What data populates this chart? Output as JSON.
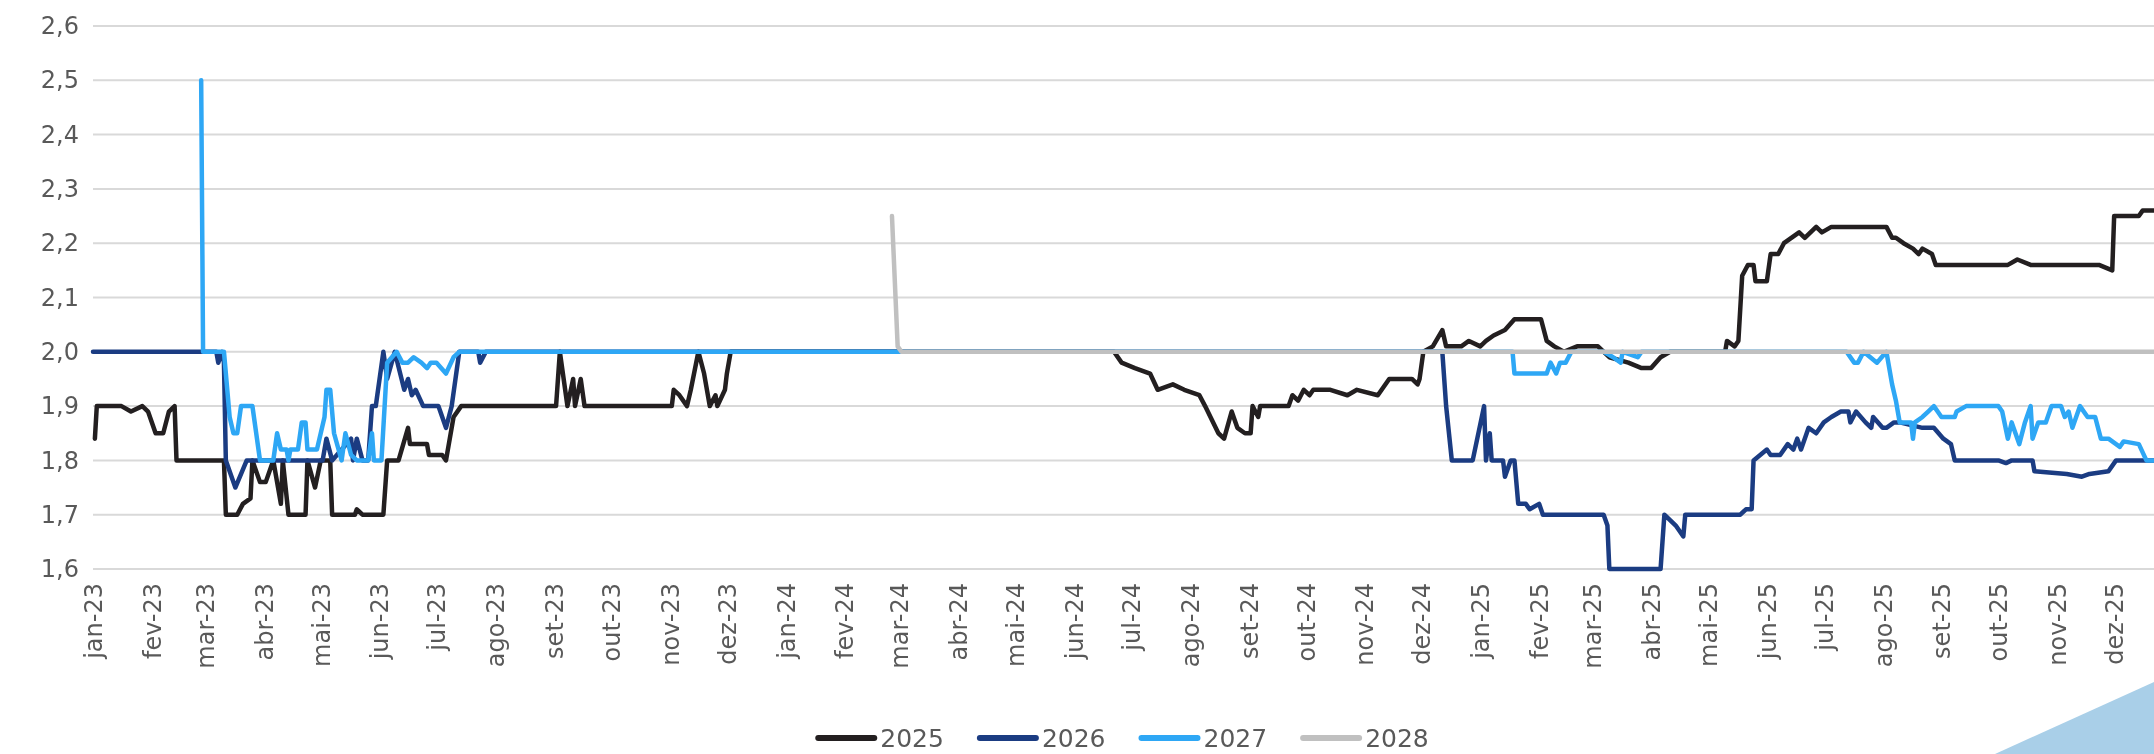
{
  "chart_data": {
    "type": "line",
    "grid": "y",
    "legend": "bottom",
    "line_style": "solid",
    "marker": "none",
    "xlim": [
      "2023-01-01",
      "2025-12-22"
    ],
    "xticks": [
      {
        "value": "2023-01-01",
        "label": "jan-23"
      },
      {
        "value": "2023-02-01",
        "label": "fev-23"
      },
      {
        "value": "2023-03-01",
        "label": "mar-23"
      },
      {
        "value": "2023-04-01",
        "label": "abr-23"
      },
      {
        "value": "2023-05-01",
        "label": "mai-23"
      },
      {
        "value": "2023-06-01",
        "label": "jun-23"
      },
      {
        "value": "2023-07-01",
        "label": "jul-23"
      },
      {
        "value": "2023-08-01",
        "label": "ago-23"
      },
      {
        "value": "2023-09-01",
        "label": "set-23"
      },
      {
        "value": "2023-10-01",
        "label": "out-23"
      },
      {
        "value": "2023-11-01",
        "label": "nov-23"
      },
      {
        "value": "2023-12-01",
        "label": "dez-23"
      },
      {
        "value": "2024-01-01",
        "label": "jan-24"
      },
      {
        "value": "2024-02-01",
        "label": "fev-24"
      },
      {
        "value": "2024-03-01",
        "label": "mar-24"
      },
      {
        "value": "2024-04-01",
        "label": "abr-24"
      },
      {
        "value": "2024-05-01",
        "label": "mai-24"
      },
      {
        "value": "2024-06-01",
        "label": "jun-24"
      },
      {
        "value": "2024-07-01",
        "label": "jul-24"
      },
      {
        "value": "2024-08-01",
        "label": "ago-24"
      },
      {
        "value": "2024-09-01",
        "label": "set-24"
      },
      {
        "value": "2024-10-01",
        "label": "out-24"
      },
      {
        "value": "2024-11-01",
        "label": "nov-24"
      },
      {
        "value": "2024-12-01",
        "label": "dez-24"
      },
      {
        "value": "2025-01-01",
        "label": "jan-25"
      },
      {
        "value": "2025-02-01",
        "label": "fev-25"
      },
      {
        "value": "2025-03-01",
        "label": "mar-25"
      },
      {
        "value": "2025-04-01",
        "label": "abr-25"
      },
      {
        "value": "2025-05-01",
        "label": "mai-25"
      },
      {
        "value": "2025-06-01",
        "label": "jun-25"
      },
      {
        "value": "2025-07-01",
        "label": "jul-25"
      },
      {
        "value": "2025-08-01",
        "label": "ago-25"
      },
      {
        "value": "2025-09-01",
        "label": "set-25"
      },
      {
        "value": "2025-10-01",
        "label": "out-25"
      },
      {
        "value": "2025-11-01",
        "label": "nov-25"
      },
      {
        "value": "2025-12-01",
        "label": "dez-25"
      }
    ],
    "ylim": [
      1.6,
      2.6
    ],
    "yticks": [
      {
        "value": 1.6,
        "label": "1,6"
      },
      {
        "value": 1.7,
        "label": "1,7"
      },
      {
        "value": 1.8,
        "label": "1,8"
      },
      {
        "value": 1.9,
        "label": "1,9"
      },
      {
        "value": 2.0,
        "label": "2,0"
      },
      {
        "value": 2.1,
        "label": "2,1"
      },
      {
        "value": 2.2,
        "label": "2,2"
      },
      {
        "value": 2.3,
        "label": "2,3"
      },
      {
        "value": 2.4,
        "label": "2,4"
      },
      {
        "value": 2.5,
        "label": "2,5"
      },
      {
        "value": 2.6,
        "label": "2,6"
      }
    ],
    "series": [
      {
        "name": "2025",
        "color": "#231f20",
        "x": [
          "2023-01-02",
          "2023-01-03",
          "2023-01-16",
          "2023-01-21",
          "2023-01-27",
          "2023-01-30",
          "2023-02-03",
          "2023-02-07",
          "2023-02-10",
          "2023-02-13",
          "2023-02-14",
          "2023-03-11",
          "2023-03-12",
          "2023-03-18",
          "2023-03-21",
          "2023-03-25",
          "2023-03-26",
          "2023-03-30",
          "2023-04-02",
          "2023-04-06",
          "2023-04-10",
          "2023-04-11",
          "2023-04-14",
          "2023-04-23",
          "2023-04-24",
          "2023-04-28",
          "2023-05-01",
          "2023-05-06",
          "2023-05-07",
          "2023-05-19",
          "2023-05-20",
          "2023-05-23",
          "2023-06-03",
          "2023-06-05",
          "2023-06-11",
          "2023-06-16",
          "2023-06-17",
          "2023-06-26",
          "2023-06-27",
          "2023-07-04",
          "2023-07-06",
          "2023-07-10",
          "2023-07-14",
          "2023-09-02",
          "2023-09-04",
          "2023-09-08",
          "2023-09-11",
          "2023-09-12",
          "2023-09-15",
          "2023-09-17",
          "2023-11-02",
          "2023-11-03",
          "2023-11-06",
          "2023-11-10",
          "2023-11-12",
          "2023-11-16",
          "2023-11-19",
          "2023-11-22",
          "2023-11-25",
          "2023-11-26",
          "2023-11-30",
          "2023-12-01",
          "2023-12-03",
          "2024-06-22",
          "2024-06-26",
          "2024-07-03",
          "2024-07-11",
          "2024-07-15",
          "2024-07-23",
          "2024-07-29",
          "2024-08-06",
          "2024-08-09",
          "2024-08-16",
          "2024-08-19",
          "2024-08-23",
          "2024-08-26",
          "2024-08-30",
          "2024-09-02",
          "2024-09-03",
          "2024-09-06",
          "2024-09-07",
          "2024-09-22",
          "2024-09-24",
          "2024-09-27",
          "2024-09-30",
          "2024-10-03",
          "2024-10-05",
          "2024-10-14",
          "2024-10-23",
          "2024-10-28",
          "2024-11-08",
          "2024-11-14",
          "2024-11-26",
          "2024-11-29",
          "2024-11-30",
          "2024-12-02",
          "2024-12-07",
          "2024-12-12",
          "2024-12-14",
          "2024-12-22",
          "2024-12-26",
          "2025-01-01",
          "2025-01-04",
          "2025-01-08",
          "2025-01-14",
          "2025-01-19",
          "2025-02-02",
          "2025-02-05",
          "2025-02-09",
          "2025-02-14",
          "2025-02-21",
          "2025-03-04",
          "2025-03-10",
          "2025-03-20",
          "2025-03-27",
          "2025-04-01",
          "2025-04-06",
          "2025-04-11",
          "2025-05-10",
          "2025-05-11",
          "2025-05-15",
          "2025-05-17",
          "2025-05-19",
          "2025-05-22",
          "2025-05-25",
          "2025-05-26",
          "2025-06-01",
          "2025-06-03",
          "2025-06-07",
          "2025-06-10",
          "2025-06-18",
          "2025-06-21",
          "2025-06-27",
          "2025-06-30",
          "2025-07-05",
          "2025-07-12",
          "2025-08-03",
          "2025-08-06",
          "2025-08-08",
          "2025-08-12",
          "2025-08-17",
          "2025-08-20",
          "2025-08-22",
          "2025-08-27",
          "2025-08-29",
          "2025-10-06",
          "2025-10-11",
          "2025-10-18",
          "2025-11-23",
          "2025-11-30",
          "2025-12-01",
          "2025-12-14",
          "2025-12-16",
          "2025-12-22"
        ],
        "values": [
          1.84,
          1.9,
          1.9,
          1.89,
          1.9,
          1.89,
          1.85,
          1.85,
          1.89,
          1.9,
          1.8,
          1.8,
          1.7,
          1.7,
          1.72,
          1.73,
          1.8,
          1.76,
          1.76,
          1.8,
          1.72,
          1.8,
          1.7,
          1.7,
          1.8,
          1.75,
          1.8,
          1.8,
          1.7,
          1.7,
          1.71,
          1.7,
          1.7,
          1.8,
          1.8,
          1.86,
          1.83,
          1.83,
          1.81,
          1.81,
          1.8,
          1.88,
          1.9,
          1.9,
          2.0,
          1.9,
          1.95,
          1.9,
          1.95,
          1.9,
          1.9,
          1.93,
          1.92,
          1.9,
          1.93,
          2.0,
          1.96,
          1.9,
          1.92,
          1.9,
          1.93,
          1.96,
          2.0,
          2.0,
          1.98,
          1.97,
          1.96,
          1.93,
          1.94,
          1.93,
          1.92,
          1.9,
          1.85,
          1.84,
          1.89,
          1.86,
          1.85,
          1.85,
          1.9,
          1.88,
          1.9,
          1.9,
          1.92,
          1.91,
          1.93,
          1.92,
          1.93,
          1.93,
          1.92,
          1.93,
          1.92,
          1.95,
          1.95,
          1.94,
          1.95,
          2.0,
          2.01,
          2.04,
          2.01,
          2.01,
          2.02,
          2.01,
          2.02,
          2.03,
          2.04,
          2.06,
          2.06,
          2.02,
          2.01,
          2.0,
          2.01,
          2.01,
          1.99,
          1.98,
          1.97,
          1.97,
          1.99,
          2.0,
          2.0,
          2.02,
          2.01,
          2.02,
          2.14,
          2.16,
          2.16,
          2.13,
          2.13,
          2.18,
          2.18,
          2.2,
          2.22,
          2.21,
          2.23,
          2.22,
          2.23,
          2.23,
          2.23,
          2.21,
          2.21,
          2.2,
          2.19,
          2.18,
          2.19,
          2.18,
          2.16,
          2.16,
          2.17,
          2.16,
          2.16,
          2.15,
          2.25,
          2.25,
          2.26,
          2.26
        ]
      },
      {
        "name": "2026",
        "color": "#1b3c82",
        "x": [
          "2023-01-01",
          "2023-03-07",
          "2023-03-08",
          "2023-03-10",
          "2023-03-11",
          "2023-03-12",
          "2023-03-17",
          "2023-03-23",
          "2023-05-02",
          "2023-05-04",
          "2023-05-07",
          "2023-05-17",
          "2023-05-18",
          "2023-05-20",
          "2023-05-23",
          "2023-05-26",
          "2023-05-28",
          "2023-05-30",
          "2023-06-03",
          "2023-06-05",
          "2023-06-09",
          "2023-06-14",
          "2023-06-16",
          "2023-06-18",
          "2023-06-20",
          "2023-06-24",
          "2023-07-02",
          "2023-07-06",
          "2023-07-09",
          "2023-07-13",
          "2023-07-23",
          "2023-07-24",
          "2023-07-27",
          "2024-12-12",
          "2024-12-14",
          "2024-12-17",
          "2024-12-28",
          "2025-01-03",
          "2025-01-04",
          "2025-01-06",
          "2025-01-07",
          "2025-01-13",
          "2025-01-14",
          "2025-01-17",
          "2025-01-19",
          "2025-01-21",
          "2025-01-25",
          "2025-01-27",
          "2025-02-01",
          "2025-02-03",
          "2025-03-07",
          "2025-03-09",
          "2025-03-10",
          "2025-04-06",
          "2025-04-08",
          "2025-04-14",
          "2025-04-18",
          "2025-04-19",
          "2025-05-18",
          "2025-05-21",
          "2025-05-24",
          "2025-05-25",
          "2025-06-01",
          "2025-06-03",
          "2025-06-08",
          "2025-06-12",
          "2025-06-15",
          "2025-06-17",
          "2025-06-19",
          "2025-06-23",
          "2025-06-27",
          "2025-07-01",
          "2025-07-05",
          "2025-07-10",
          "2025-07-14",
          "2025-07-15",
          "2025-07-18",
          "2025-07-23",
          "2025-07-26",
          "2025-07-27",
          "2025-08-01",
          "2025-08-03",
          "2025-08-07",
          "2025-08-10",
          "2025-08-22",
          "2025-08-28",
          "2025-09-02",
          "2025-09-06",
          "2025-09-08",
          "2025-10-01",
          "2025-10-05",
          "2025-10-08",
          "2025-10-19",
          "2025-10-20",
          "2025-11-06",
          "2025-11-14",
          "2025-11-18",
          "2025-11-28",
          "2025-12-02",
          "2025-12-22"
        ],
        "values": [
          2.0,
          2.0,
          1.98,
          2.0,
          1.98,
          1.8,
          1.75,
          1.8,
          1.8,
          1.84,
          1.8,
          1.84,
          1.8,
          1.84,
          1.8,
          1.8,
          1.9,
          1.9,
          2.0,
          1.95,
          2.0,
          1.93,
          1.95,
          1.92,
          1.93,
          1.9,
          1.9,
          1.86,
          1.9,
          2.0,
          2.0,
          1.98,
          2.0,
          2.0,
          1.9,
          1.8,
          1.8,
          1.9,
          1.8,
          1.85,
          1.8,
          1.8,
          1.77,
          1.8,
          1.8,
          1.72,
          1.72,
          1.71,
          1.72,
          1.7,
          1.7,
          1.68,
          1.6,
          1.6,
          1.7,
          1.68,
          1.66,
          1.7,
          1.7,
          1.71,
          1.71,
          1.8,
          1.82,
          1.81,
          1.81,
          1.83,
          1.82,
          1.84,
          1.82,
          1.86,
          1.85,
          1.87,
          1.88,
          1.89,
          1.89,
          1.87,
          1.89,
          1.87,
          1.86,
          1.88,
          1.86,
          1.86,
          1.87,
          1.87,
          1.86,
          1.86,
          1.84,
          1.83,
          1.8,
          1.8,
          1.795,
          1.8,
          1.8,
          1.78,
          1.775,
          1.77,
          1.775,
          1.78,
          1.8,
          1.8
        ]
      },
      {
        "name": "2027",
        "color": "#2ea7f5",
        "x": [
          "2023-02-27",
          "2023-02-28",
          "2023-03-11",
          "2023-03-14",
          "2023-03-16",
          "2023-03-18",
          "2023-03-20",
          "2023-03-26",
          "2023-03-28",
          "2023-03-30",
          "2023-04-06",
          "2023-04-08",
          "2023-04-10",
          "2023-04-13",
          "2023-04-14",
          "2023-04-15",
          "2023-04-19",
          "2023-04-21",
          "2023-04-23",
          "2023-04-24",
          "2023-04-29",
          "2023-05-03",
          "2023-05-04",
          "2023-05-06",
          "2023-05-08",
          "2023-05-12",
          "2023-05-14",
          "2023-05-17",
          "2023-05-20",
          "2023-05-26",
          "2023-05-28",
          "2023-05-29",
          "2023-06-02",
          "2023-06-05",
          "2023-06-10",
          "2023-06-13",
          "2023-06-16",
          "2023-06-19",
          "2023-06-23",
          "2023-06-26",
          "2023-06-28",
          "2023-07-01",
          "2023-07-06",
          "2023-07-10",
          "2023-07-13",
          "2025-01-18",
          "2025-01-19",
          "2025-02-05",
          "2025-02-07",
          "2025-02-10",
          "2025-02-12",
          "2025-02-15",
          "2025-02-18",
          "2025-03-07",
          "2025-03-12",
          "2025-03-16",
          "2025-03-17",
          "2025-03-25",
          "2025-03-27",
          "2025-07-13",
          "2025-07-17",
          "2025-07-19",
          "2025-07-22",
          "2025-07-29",
          "2025-08-03",
          "2025-08-06",
          "2025-08-08",
          "2025-08-09",
          "2025-08-10",
          "2025-08-16",
          "2025-08-17",
          "2025-08-18",
          "2025-08-22",
          "2025-08-25",
          "2025-08-28",
          "2025-08-30",
          "2025-09-01",
          "2025-09-08",
          "2025-09-09",
          "2025-09-14",
          "2025-10-01",
          "2025-10-03",
          "2025-10-06",
          "2025-10-08",
          "2025-10-12",
          "2025-10-15",
          "2025-10-18",
          "2025-10-19",
          "2025-10-22",
          "2025-10-26",
          "2025-10-29",
          "2025-11-03",
          "2025-11-05",
          "2025-11-07",
          "2025-11-09",
          "2025-11-12",
          "2025-11-13",
          "2025-11-17",
          "2025-11-21",
          "2025-11-24",
          "2025-11-28",
          "2025-12-04",
          "2025-12-06",
          "2025-12-14",
          "2025-12-18",
          "2025-12-22"
        ],
        "values": [
          2.5,
          2.0,
          2.0,
          1.88,
          1.85,
          1.85,
          1.9,
          1.9,
          1.85,
          1.8,
          1.8,
          1.85,
          1.82,
          1.82,
          1.8,
          1.82,
          1.82,
          1.87,
          1.87,
          1.82,
          1.82,
          1.88,
          1.93,
          1.93,
          1.85,
          1.8,
          1.85,
          1.81,
          1.8,
          1.8,
          1.85,
          1.8,
          1.8,
          1.98,
          2.0,
          1.98,
          1.98,
          1.99,
          1.98,
          1.97,
          1.98,
          1.98,
          1.96,
          1.99,
          2.0,
          2.0,
          1.96,
          1.96,
          1.98,
          1.96,
          1.98,
          1.98,
          2.0,
          2.0,
          1.99,
          1.98,
          2.0,
          1.99,
          2.0,
          2.0,
          1.98,
          1.98,
          2.0,
          1.98,
          2.0,
          1.94,
          1.91,
          1.89,
          1.87,
          1.87,
          1.84,
          1.87,
          1.88,
          1.89,
          1.9,
          1.89,
          1.88,
          1.88,
          1.89,
          1.9,
          1.9,
          1.89,
          1.84,
          1.87,
          1.83,
          1.87,
          1.9,
          1.84,
          1.87,
          1.87,
          1.9,
          1.9,
          1.88,
          1.89,
          1.86,
          1.89,
          1.9,
          1.88,
          1.88,
          1.84,
          1.84,
          1.825,
          1.835,
          1.83,
          1.8,
          1.8
        ]
      },
      {
        "name": "2028",
        "color": "#c0c0c0",
        "x": [
          "2024-02-26",
          "2024-02-29",
          "2024-03-02",
          "2025-12-22"
        ],
        "values": [
          2.25,
          2.01,
          2.0,
          2.0
        ]
      }
    ]
  }
}
